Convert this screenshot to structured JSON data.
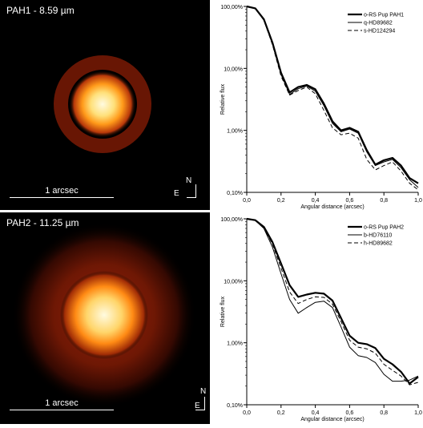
{
  "panels": [
    {
      "image_title": "PAH1 - 8.59 µm",
      "scale_label": "1 arcsec",
      "north_label": "N",
      "east_label": "E"
    },
    {
      "image_title": "PAH2 - 11.25 µm",
      "scale_label": "1 arcsec",
      "north_label": "N",
      "east_label": "E"
    }
  ],
  "chart_data": [
    {
      "type": "line",
      "xlabel": "Angular distance (arcsec)",
      "ylabel": "Relative flux",
      "xlim": [
        0,
        1
      ],
      "ylim": [
        0.001,
        1
      ],
      "yscale": "log",
      "x_ticks": [
        "0,0",
        "0,2",
        "0,4",
        "0,6",
        "0,8",
        "1,0"
      ],
      "y_ticks": [
        "0,10%",
        "1,00%",
        "10,00%",
        "100,00%"
      ],
      "legend_position": "top-right",
      "x": [
        0.0,
        0.05,
        0.1,
        0.15,
        0.2,
        0.25,
        0.3,
        0.35,
        0.4,
        0.45,
        0.5,
        0.55,
        0.6,
        0.65,
        0.7,
        0.75,
        0.8,
        0.85,
        0.9,
        0.95,
        1.0
      ],
      "series": [
        {
          "name": "o-RS Pup PAH1",
          "style": "thick",
          "values": [
            1.0,
            0.93,
            0.62,
            0.26,
            0.085,
            0.041,
            0.05,
            0.054,
            0.046,
            0.027,
            0.014,
            0.01,
            0.011,
            0.0095,
            0.0048,
            0.0028,
            0.0033,
            0.0036,
            0.0027,
            0.0017,
            0.0014
          ]
        },
        {
          "name": "q-HD89682",
          "style": "thin",
          "values": [
            1.0,
            0.92,
            0.6,
            0.25,
            0.08,
            0.038,
            0.047,
            0.052,
            0.043,
            0.025,
            0.013,
            0.0095,
            0.0105,
            0.009,
            0.0045,
            0.0027,
            0.0031,
            0.0034,
            0.0025,
            0.0016,
            0.0012
          ]
        },
        {
          "name": "s-HD124294",
          "style": "dashed",
          "values": [
            1.0,
            0.92,
            0.6,
            0.24,
            0.075,
            0.037,
            0.044,
            0.05,
            0.039,
            0.021,
            0.011,
            0.0085,
            0.009,
            0.0075,
            0.0034,
            0.0023,
            0.0027,
            0.0031,
            0.0022,
            0.0014,
            0.0011
          ]
        }
      ]
    },
    {
      "type": "line",
      "xlabel": "Angular distance (arcsec)",
      "ylabel": "Relative flux",
      "xlim": [
        0,
        1
      ],
      "ylim": [
        0.001,
        1
      ],
      "yscale": "log",
      "x_ticks": [
        "0,0",
        "0,2",
        "0,4",
        "0,6",
        "0,8",
        "1,0"
      ],
      "y_ticks": [
        "0,10%",
        "1,00%",
        "10,00%",
        "100,00%"
      ],
      "legend_position": "top-right",
      "x": [
        0.0,
        0.05,
        0.1,
        0.15,
        0.2,
        0.25,
        0.3,
        0.35,
        0.4,
        0.45,
        0.5,
        0.55,
        0.6,
        0.65,
        0.7,
        0.75,
        0.8,
        0.85,
        0.9,
        0.95,
        1.0
      ],
      "series": [
        {
          "name": "o-RS Pup PAH2",
          "style": "thick",
          "values": [
            1.0,
            0.95,
            0.74,
            0.42,
            0.19,
            0.085,
            0.055,
            0.06,
            0.064,
            0.062,
            0.048,
            0.025,
            0.013,
            0.01,
            0.0095,
            0.0082,
            0.0055,
            0.0045,
            0.0034,
            0.0022,
            0.0028
          ]
        },
        {
          "name": "b-HD76110",
          "style": "thin",
          "values": [
            1.0,
            0.94,
            0.7,
            0.35,
            0.13,
            0.05,
            0.03,
            0.037,
            0.045,
            0.047,
            0.037,
            0.018,
            0.0085,
            0.0062,
            0.0058,
            0.0048,
            0.0031,
            0.0024,
            0.0024,
            0.0025,
            0.0029
          ]
        },
        {
          "name": "h-HD89682",
          "style": "dashed",
          "values": [
            1.0,
            0.95,
            0.72,
            0.39,
            0.16,
            0.066,
            0.043,
            0.05,
            0.055,
            0.054,
            0.042,
            0.022,
            0.011,
            0.0085,
            0.008,
            0.0068,
            0.0045,
            0.0036,
            0.0029,
            0.0021,
            0.0023
          ]
        }
      ]
    }
  ]
}
